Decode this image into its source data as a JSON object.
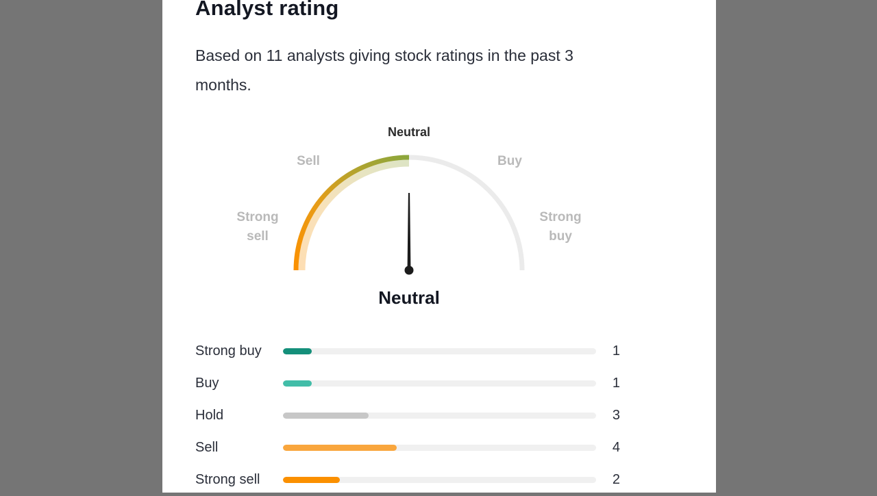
{
  "panel": {
    "title": "Analyst rating",
    "subtitle": "Based on 11 analysts giving stock ratings in the past 3 months."
  },
  "gauge": {
    "labels": {
      "top": "Neutral",
      "upper_left": "Sell",
      "upper_right": "Buy",
      "left": "Strong\nsell",
      "right": "Strong\nbuy"
    },
    "value_label": "Neutral",
    "gradient": [
      "#fb9000",
      "#e89c17",
      "#b0a42f",
      "#8ba63c"
    ],
    "track_color": "#ebebeb",
    "needle_color": "#1c1c1c"
  },
  "ratings": {
    "total": 11,
    "rows": [
      {
        "label": "Strong buy",
        "value": 1,
        "color": "#148f7a"
      },
      {
        "label": "Buy",
        "value": 1,
        "color": "#42bda8"
      },
      {
        "label": "Hold",
        "value": 3,
        "color": "#c7c7c7"
      },
      {
        "label": "Sell",
        "value": 4,
        "color": "#f9a63d"
      },
      {
        "label": "Strong sell",
        "value": 2,
        "color": "#fb9000"
      }
    ]
  },
  "chart_data": [
    {
      "type": "gauge",
      "title": "Analyst rating",
      "subtitle": "Based on 11 analysts giving stock ratings in the past 3 months.",
      "scale": [
        "Strong sell",
        "Sell",
        "Neutral",
        "Buy",
        "Strong buy"
      ],
      "value": "Neutral",
      "arc_colored_range": "Strong sell to Neutral (orange to olive-green gradient)",
      "arc_remainder_color": "light gray"
    },
    {
      "type": "bar",
      "orientation": "horizontal",
      "categories": [
        "Strong buy",
        "Buy",
        "Hold",
        "Sell",
        "Strong sell"
      ],
      "values": [
        1,
        1,
        3,
        4,
        2
      ],
      "total_analysts": 11,
      "bar_colors": [
        "#148f7a",
        "#42bda8",
        "#c7c7c7",
        "#f9a63d",
        "#fb9000"
      ],
      "value_labels_position": "right"
    }
  ]
}
